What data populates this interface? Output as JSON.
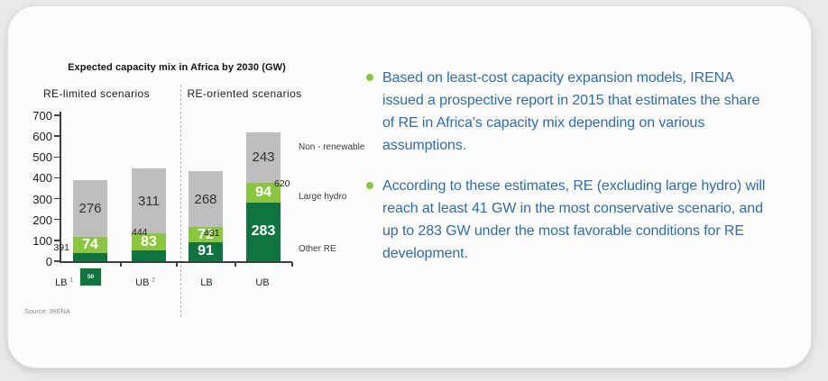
{
  "chart": {
    "title": "Expected capacity mix in Africa by 2030 (GW)",
    "group_labels": [
      "RE-limited scenarios",
      "RE-oriented scenarios"
    ],
    "legend_labels": [
      "Non - renewable",
      "Large hydro",
      "Other RE"
    ],
    "source_note": "Source: IRENA"
  },
  "chart_data": {
    "type": "bar",
    "stacked": true,
    "title": "Expected capacity mix in Africa by 2030 (GW)",
    "unit": "GW",
    "groups": [
      "RE-limited scenarios",
      "RE-oriented scenarios"
    ],
    "categories": [
      "LB",
      "UB",
      "LB",
      "UB"
    ],
    "category_footnotes": [
      "1",
      "2",
      "",
      ""
    ],
    "category_groups": [
      0,
      0,
      1,
      1
    ],
    "series": [
      {
        "name": "Other RE",
        "color": "#0f7540",
        "values": [
          41,
          50,
          91,
          283
        ]
      },
      {
        "name": "Large hydro",
        "color": "#8cc63e",
        "values": [
          74,
          83,
          72,
          94
        ]
      },
      {
        "name": "Non - renewable",
        "color": "#bfbebe",
        "values": [
          276,
          311,
          268,
          243
        ]
      }
    ],
    "totals": [
      391,
      444,
      431,
      620
    ],
    "ylim": [
      0,
      700
    ],
    "ytick_step": 100,
    "legend_position": "right",
    "grid": false
  },
  "bullets": {
    "marker_color": "#8bc53f",
    "text_color": "#2f6da8",
    "items": [
      {
        "lines": [
          "Based on least-cost capacity expansion models, IRENA",
          "issued a prospective report in 2015 that estimates the share",
          "of RE in Africa's capacity mix depending on various",
          "assumptions."
        ]
      },
      {
        "lines": [
          "According to these estimates, RE (excluding large hydro) will",
          "reach at least 41 GW in the most conservative scenario, and",
          "up to 283 GW under the most favorable conditions for RE",
          "development."
        ]
      }
    ]
  }
}
